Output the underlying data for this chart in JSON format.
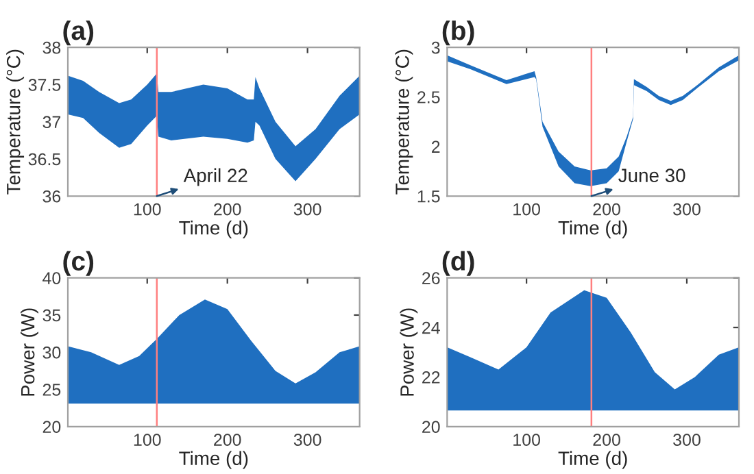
{
  "chart_data": [
    {
      "type": "area",
      "title": "(a)",
      "xlabel": "Time (d)",
      "ylabel": "Temperature (°C)",
      "xlim": [
        1,
        365
      ],
      "xticks": [
        100,
        200,
        300
      ],
      "ylim": [
        36,
        38
      ],
      "yticks": [
        36,
        36.5,
        37,
        37.5,
        38
      ],
      "series": [
        {
          "color": "#1f6fc0",
          "x": [
            1,
            20,
            40,
            65,
            80,
            100,
            112,
            114,
            130,
            170,
            200,
            225,
            233,
            235,
            240,
            260,
            285,
            310,
            340,
            365
          ],
          "values": [
            37.62,
            37.55,
            37.4,
            37.25,
            37.3,
            37.5,
            37.65,
            37.4,
            37.4,
            37.5,
            37.45,
            37.3,
            37.3,
            37.6,
            37.45,
            37.0,
            36.67,
            36.9,
            37.35,
            37.62
          ]
        },
        {
          "color": "#ffffff",
          "x": [
            1,
            20,
            40,
            65,
            80,
            100,
            112,
            114,
            130,
            170,
            200,
            225,
            233,
            235,
            240,
            260,
            285,
            310,
            340,
            365
          ],
          "values": [
            37.1,
            37.05,
            36.85,
            36.65,
            36.7,
            36.95,
            37.08,
            36.8,
            36.75,
            36.8,
            36.77,
            36.72,
            36.75,
            37.0,
            36.95,
            36.5,
            36.2,
            36.5,
            36.9,
            37.1
          ]
        }
      ],
      "ref_lines": [
        {
          "axis": "x",
          "value": 112,
          "color": "#ff7f7f"
        }
      ],
      "annotations": [
        {
          "text": "April 22",
          "x": 112,
          "y": 36.0
        }
      ]
    },
    {
      "type": "area",
      "title": "(b)",
      "xlabel": "Time (d)",
      "ylabel": "Temperature (°C)",
      "xlim": [
        1,
        365
      ],
      "xticks": [
        100,
        200,
        300
      ],
      "ylim": [
        1.5,
        3
      ],
      "yticks": [
        1.5,
        2,
        2.5,
        3
      ],
      "series": [
        {
          "color": "#1f6fc0",
          "x": [
            1,
            30,
            75,
            110,
            112,
            120,
            140,
            160,
            180,
            200,
            215,
            225,
            233,
            234,
            250,
            265,
            280,
            295,
            310,
            340,
            365
          ],
          "values": [
            2.92,
            2.82,
            2.67,
            2.76,
            2.7,
            2.25,
            1.95,
            1.8,
            1.76,
            1.78,
            1.9,
            2.1,
            2.3,
            2.68,
            2.6,
            2.51,
            2.46,
            2.51,
            2.6,
            2.8,
            2.92
          ]
        },
        {
          "color": "#ffffff",
          "x": [
            1,
            30,
            75,
            110,
            112,
            120,
            140,
            160,
            180,
            200,
            215,
            225,
            233,
            234,
            250,
            265,
            280,
            295,
            310,
            340,
            365
          ],
          "values": [
            2.86,
            2.78,
            2.63,
            2.7,
            2.68,
            2.2,
            1.8,
            1.63,
            1.6,
            1.63,
            1.75,
            2.05,
            2.28,
            2.62,
            2.56,
            2.47,
            2.42,
            2.47,
            2.57,
            2.76,
            2.87
          ]
        }
      ],
      "ref_lines": [
        {
          "axis": "x",
          "value": 181,
          "color": "#ff7f7f"
        }
      ],
      "annotations": [
        {
          "text": "June 30",
          "x": 181,
          "y": 1.5
        }
      ]
    },
    {
      "type": "area",
      "title": "(c)",
      "xlabel": "Time (d)",
      "ylabel": "Power (W)",
      "xlim": [
        1,
        365
      ],
      "xticks": [
        100,
        200,
        300
      ],
      "ylim": [
        20,
        40
      ],
      "yticks": [
        20,
        25,
        30,
        35,
        40
      ],
      "series": [
        {
          "color": "#1f6fc0",
          "x": [
            1,
            30,
            65,
            90,
            112,
            140,
            172,
            200,
            230,
            260,
            285,
            310,
            340,
            365
          ],
          "values": [
            30.8,
            30.0,
            28.3,
            29.5,
            31.8,
            35,
            37.1,
            35.8,
            31.5,
            27.5,
            25.8,
            27.3,
            30,
            30.8
          ]
        },
        {
          "color": "#ffffff",
          "x": [
            1,
            365
          ],
          "values": [
            23.1,
            23.1
          ]
        }
      ],
      "ref_lines": [
        {
          "axis": "x",
          "value": 112,
          "color": "#ff7f7f"
        }
      ]
    },
    {
      "type": "area",
      "title": "(d)",
      "xlabel": "Time (d)",
      "ylabel": "Power (W)",
      "xlim": [
        1,
        365
      ],
      "xticks": [
        100,
        200,
        300
      ],
      "ylim": [
        20,
        26
      ],
      "yticks": [
        20,
        22,
        24,
        26
      ],
      "series": [
        {
          "color": "#1f6fc0",
          "x": [
            1,
            30,
            65,
            100,
            130,
            172,
            200,
            230,
            260,
            285,
            310,
            340,
            365
          ],
          "values": [
            23.2,
            22.8,
            22.3,
            23.2,
            24.6,
            25.5,
            25.2,
            23.8,
            22.2,
            21.5,
            22.0,
            22.9,
            23.2
          ]
        },
        {
          "color": "#ffffff",
          "x": [
            1,
            365
          ],
          "values": [
            20.65,
            20.65
          ]
        }
      ],
      "ref_lines": [
        {
          "axis": "x",
          "value": 181,
          "color": "#ff7f7f"
        }
      ]
    }
  ]
}
